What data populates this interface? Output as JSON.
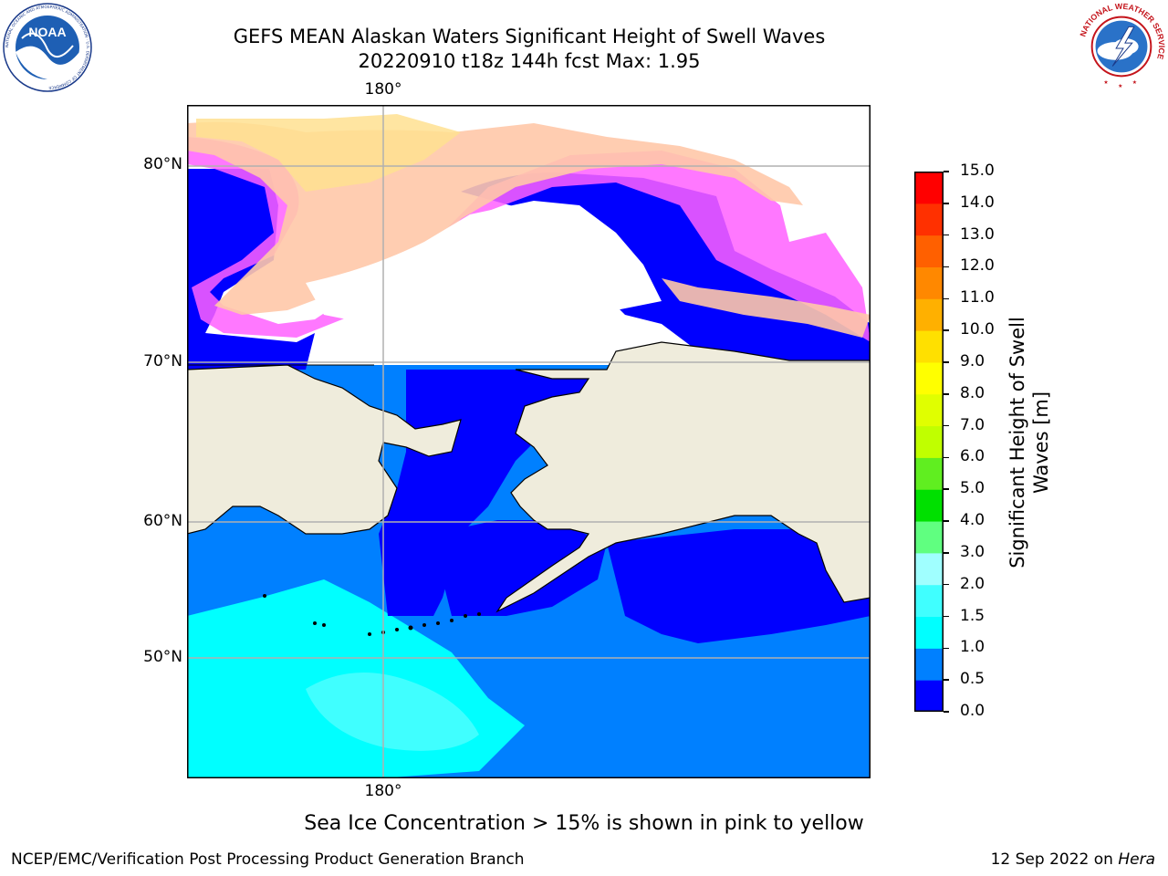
{
  "title": {
    "line1": "GEFS MEAN Alaskan Waters Significant Height of Swell Waves",
    "line2": "20220910 t18z 144h fcst   Max: 1.95"
  },
  "logos": {
    "left": {
      "text": "NOAA",
      "ring_text": "NATIONAL OCEANIC AND ATMOSPHERIC ADMINISTRATION · U.S. DEPARTMENT OF COMMERCE"
    },
    "right": {
      "ring_text": "NATIONAL WEATHER SERVICE"
    }
  },
  "map": {
    "lat_labels": [
      "80°N",
      "70°N",
      "60°N",
      "50°N"
    ],
    "lon_label_top": "180°",
    "lon_label_bottom": "180°",
    "colors": {
      "land": "#efecdc",
      "ocean_0_05": "#0000ff",
      "ocean_05_10": "#0080ff",
      "ocean_10_15": "#00ffff",
      "ocean_15_20": "#40ffff",
      "ice_low": "#ff40ff",
      "ice_mid": "#ff90b0",
      "ice_high": "#ffe070",
      "grid": "#b0b0b0"
    }
  },
  "colorbar": {
    "label": "Significant Height of Swell\nWaves [m]",
    "ticks": [
      "15.0",
      "14.0",
      "13.0",
      "12.0",
      "11.0",
      "10.0",
      "9.0",
      "8.0",
      "7.0",
      "6.0",
      "5.0",
      "4.0",
      "3.0",
      "2.0",
      "1.5",
      "1.0",
      "0.5",
      "0.0"
    ],
    "bins": [
      {
        "from": 0.0,
        "to": 0.5,
        "color": "#0000ff"
      },
      {
        "from": 0.5,
        "to": 1.0,
        "color": "#0080ff"
      },
      {
        "from": 1.0,
        "to": 1.5,
        "color": "#00ffff"
      },
      {
        "from": 1.5,
        "to": 2.0,
        "color": "#40ffff"
      },
      {
        "from": 2.0,
        "to": 3.0,
        "color": "#a0ffff"
      },
      {
        "from": 3.0,
        "to": 4.0,
        "color": "#60ff80"
      },
      {
        "from": 4.0,
        "to": 5.0,
        "color": "#00e000"
      },
      {
        "from": 5.0,
        "to": 6.0,
        "color": "#60ee20"
      },
      {
        "from": 6.0,
        "to": 7.0,
        "color": "#c0ff00"
      },
      {
        "from": 7.0,
        "to": 8.0,
        "color": "#e0ff00"
      },
      {
        "from": 8.0,
        "to": 9.0,
        "color": "#ffff00"
      },
      {
        "from": 9.0,
        "to": 10.0,
        "color": "#ffe000"
      },
      {
        "from": 10.0,
        "to": 11.0,
        "color": "#ffb000"
      },
      {
        "from": 11.0,
        "to": 12.0,
        "color": "#ff8800"
      },
      {
        "from": 12.0,
        "to": 13.0,
        "color": "#ff6000"
      },
      {
        "from": 13.0,
        "to": 14.0,
        "color": "#ff3000"
      },
      {
        "from": 14.0,
        "to": 15.0,
        "color": "#ff0000"
      }
    ]
  },
  "notes": {
    "ice": "Sea Ice Concentration > 15% is shown in pink to yellow"
  },
  "footer": {
    "left": "NCEP/EMC/Verification Post Processing Product Generation Branch",
    "right_date": "12 Sep 2022 on ",
    "right_host": "Hera"
  }
}
